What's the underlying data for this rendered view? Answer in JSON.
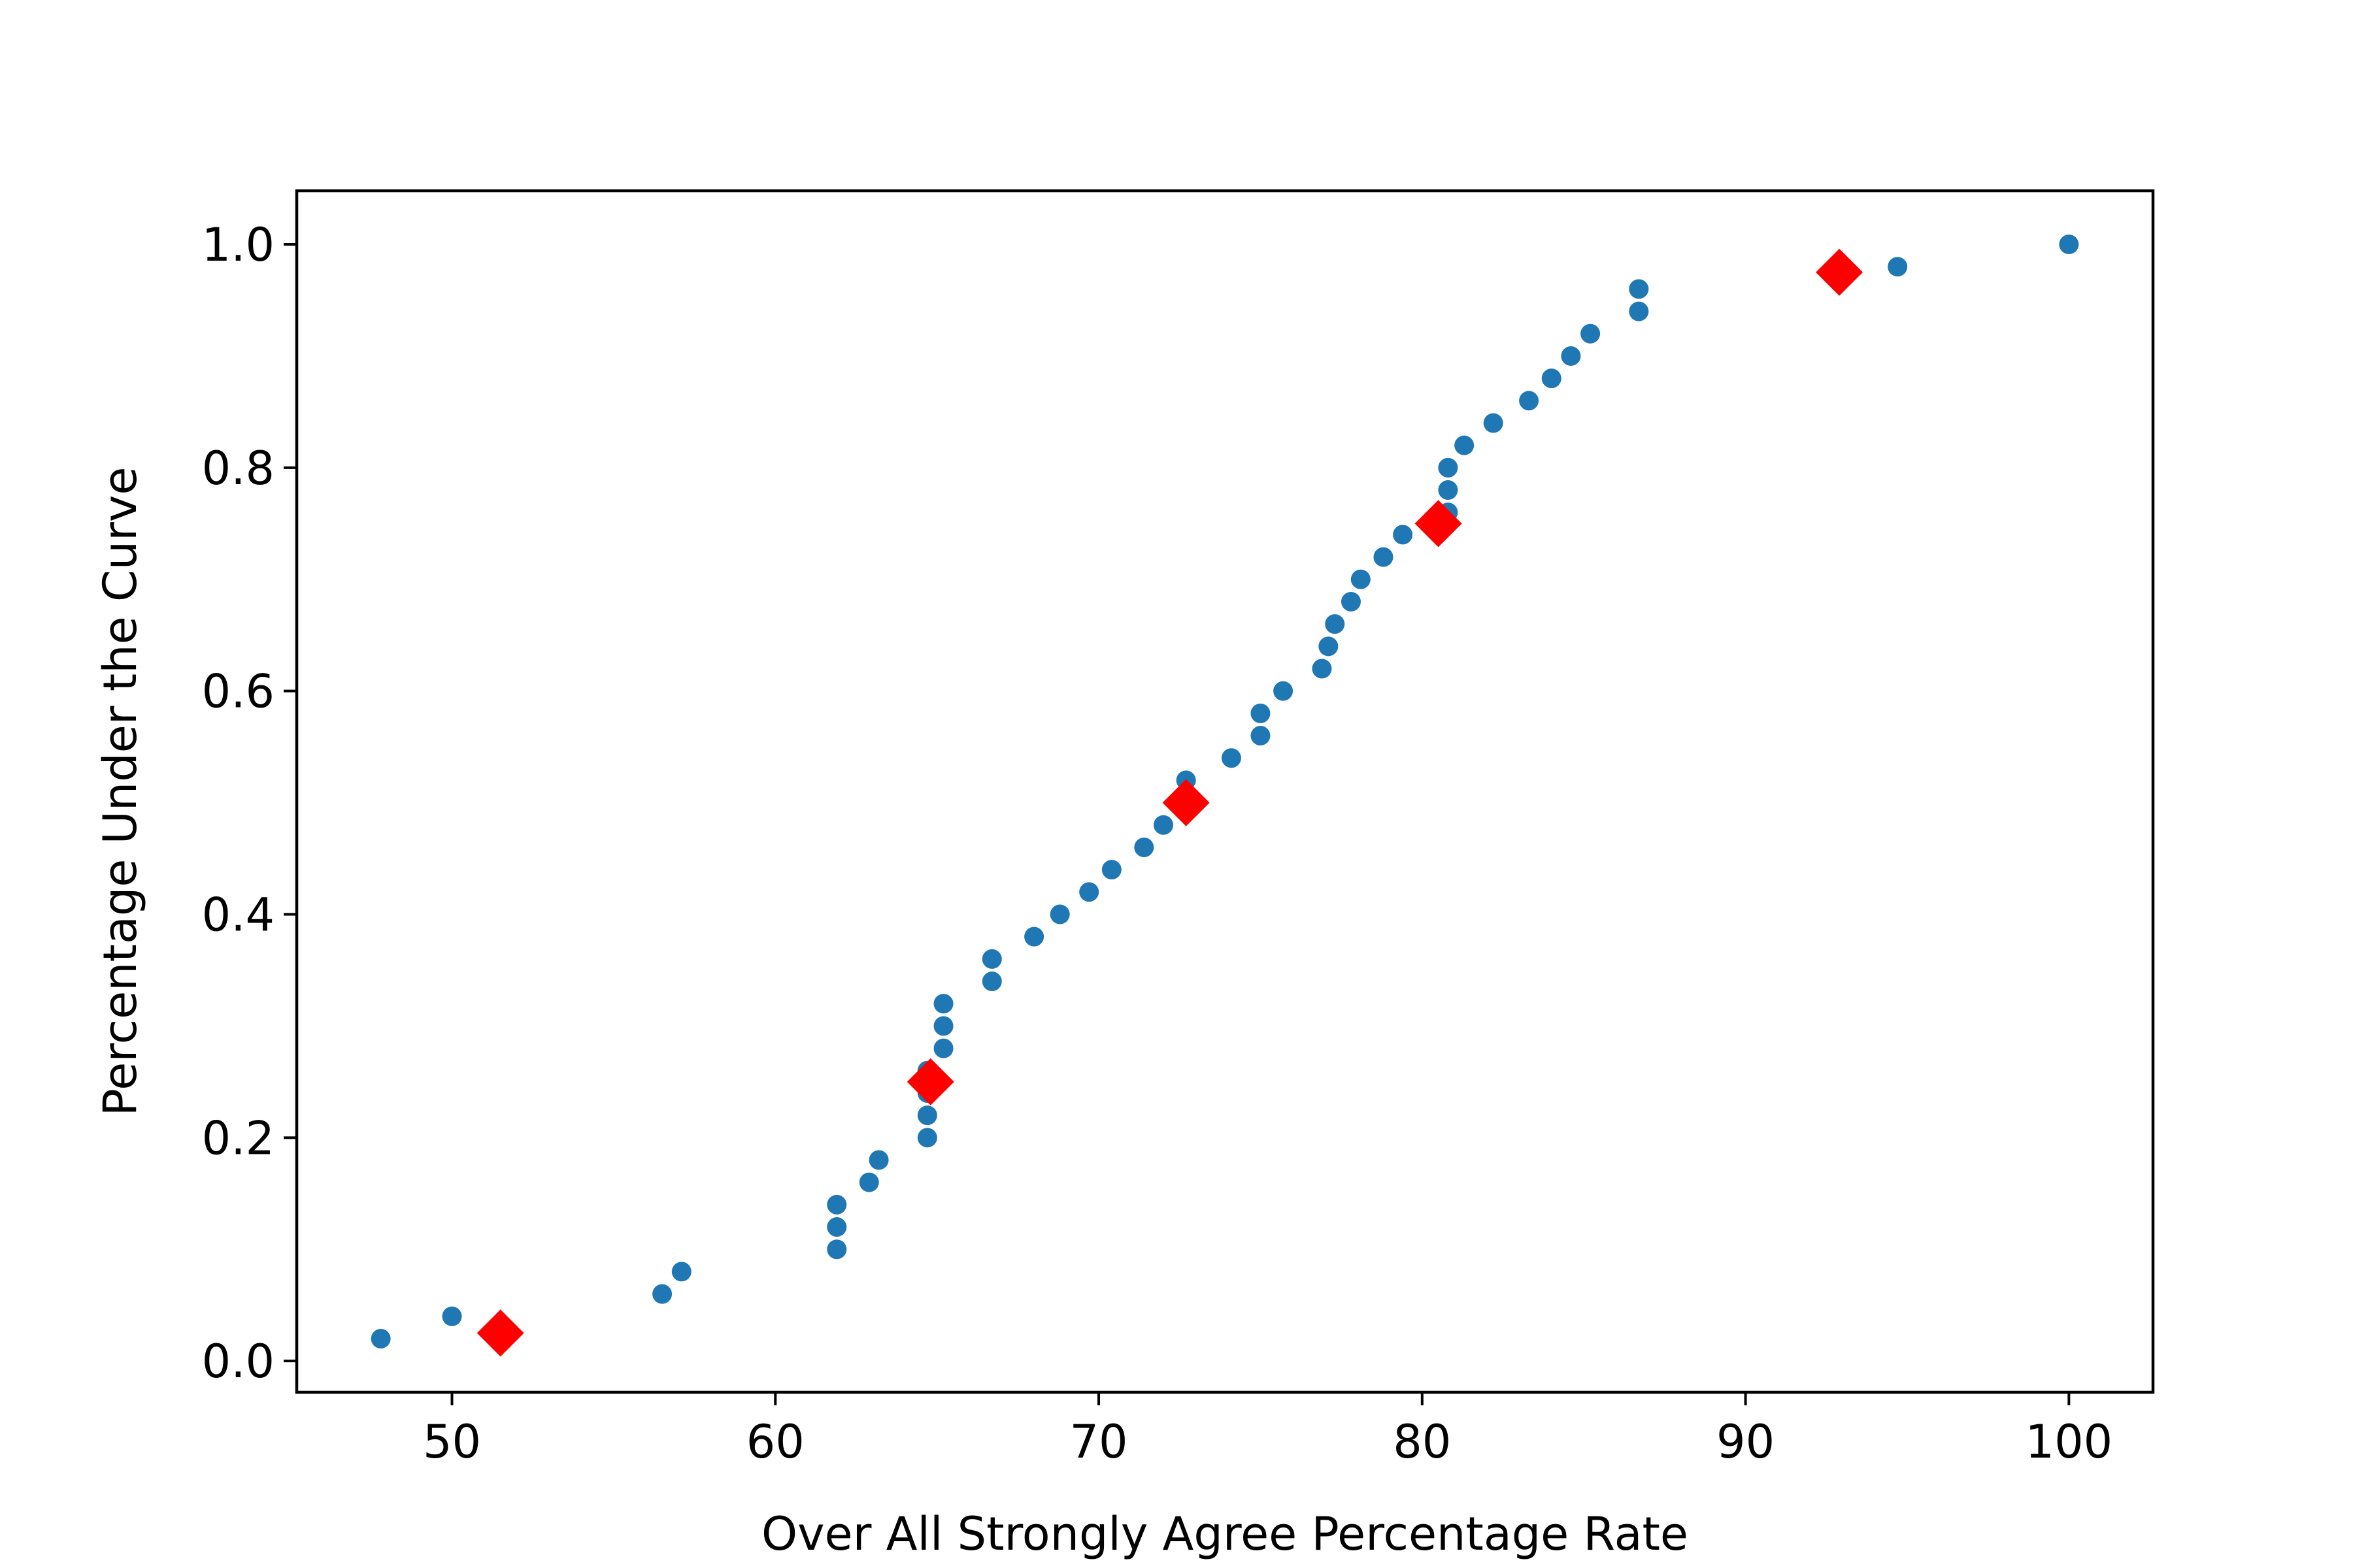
{
  "chart_data": {
    "type": "scatter",
    "title": "",
    "xlabel": "Over All Strongly Agree Percentage Rate",
    "ylabel": "Percentage Under the Curve",
    "xlim": [
      45.2,
      102.6
    ],
    "ylim": [
      -0.028,
      1.048
    ],
    "xticks": [
      50,
      60,
      70,
      80,
      90,
      100
    ],
    "xtick_labels": [
      "50",
      "60",
      "70",
      "80",
      "90",
      "100"
    ],
    "yticks": [
      0.0,
      0.2,
      0.4,
      0.6,
      0.8,
      1.0
    ],
    "ytick_labels": [
      "0.0",
      "0.2",
      "0.4",
      "0.6",
      "0.8",
      "1.0"
    ],
    "grid": false,
    "series": [
      {
        "marker": "circle",
        "color": "#1f77b4",
        "points": [
          [
            47.8,
            0.02
          ],
          [
            50.0,
            0.04
          ],
          [
            56.5,
            0.06
          ],
          [
            57.1,
            0.08
          ],
          [
            61.9,
            0.1
          ],
          [
            61.9,
            0.12
          ],
          [
            61.9,
            0.14
          ],
          [
            62.9,
            0.16
          ],
          [
            63.2,
            0.18
          ],
          [
            64.7,
            0.2
          ],
          [
            64.7,
            0.22
          ],
          [
            64.7,
            0.24
          ],
          [
            64.7,
            0.26
          ],
          [
            65.2,
            0.28
          ],
          [
            65.2,
            0.3
          ],
          [
            65.2,
            0.32
          ],
          [
            66.7,
            0.34
          ],
          [
            66.7,
            0.36
          ],
          [
            68.0,
            0.38
          ],
          [
            68.8,
            0.4
          ],
          [
            69.7,
            0.42
          ],
          [
            70.4,
            0.44
          ],
          [
            71.4,
            0.46
          ],
          [
            72.0,
            0.48
          ],
          [
            72.7,
            0.5
          ],
          [
            72.7,
            0.52
          ],
          [
            74.1,
            0.54
          ],
          [
            75.0,
            0.56
          ],
          [
            75.0,
            0.58
          ],
          [
            75.7,
            0.6
          ],
          [
            76.9,
            0.62
          ],
          [
            77.1,
            0.64
          ],
          [
            77.3,
            0.66
          ],
          [
            77.8,
            0.68
          ],
          [
            78.1,
            0.7
          ],
          [
            78.8,
            0.72
          ],
          [
            79.4,
            0.74
          ],
          [
            80.8,
            0.76
          ],
          [
            80.8,
            0.78
          ],
          [
            80.8,
            0.8
          ],
          [
            81.3,
            0.82
          ],
          [
            82.2,
            0.84
          ],
          [
            83.3,
            0.86
          ],
          [
            84.0,
            0.88
          ],
          [
            84.6,
            0.9
          ],
          [
            85.2,
            0.92
          ],
          [
            86.7,
            0.94
          ],
          [
            86.7,
            0.96
          ],
          [
            94.7,
            0.98
          ],
          [
            100.0,
            1.0
          ]
        ]
      },
      {
        "marker": "diamond",
        "color": "#ff0000",
        "points": [
          [
            51.5,
            0.025
          ],
          [
            64.8,
            0.25
          ],
          [
            72.7,
            0.5
          ],
          [
            80.5,
            0.75
          ],
          [
            92.9,
            0.975
          ]
        ]
      }
    ]
  }
}
